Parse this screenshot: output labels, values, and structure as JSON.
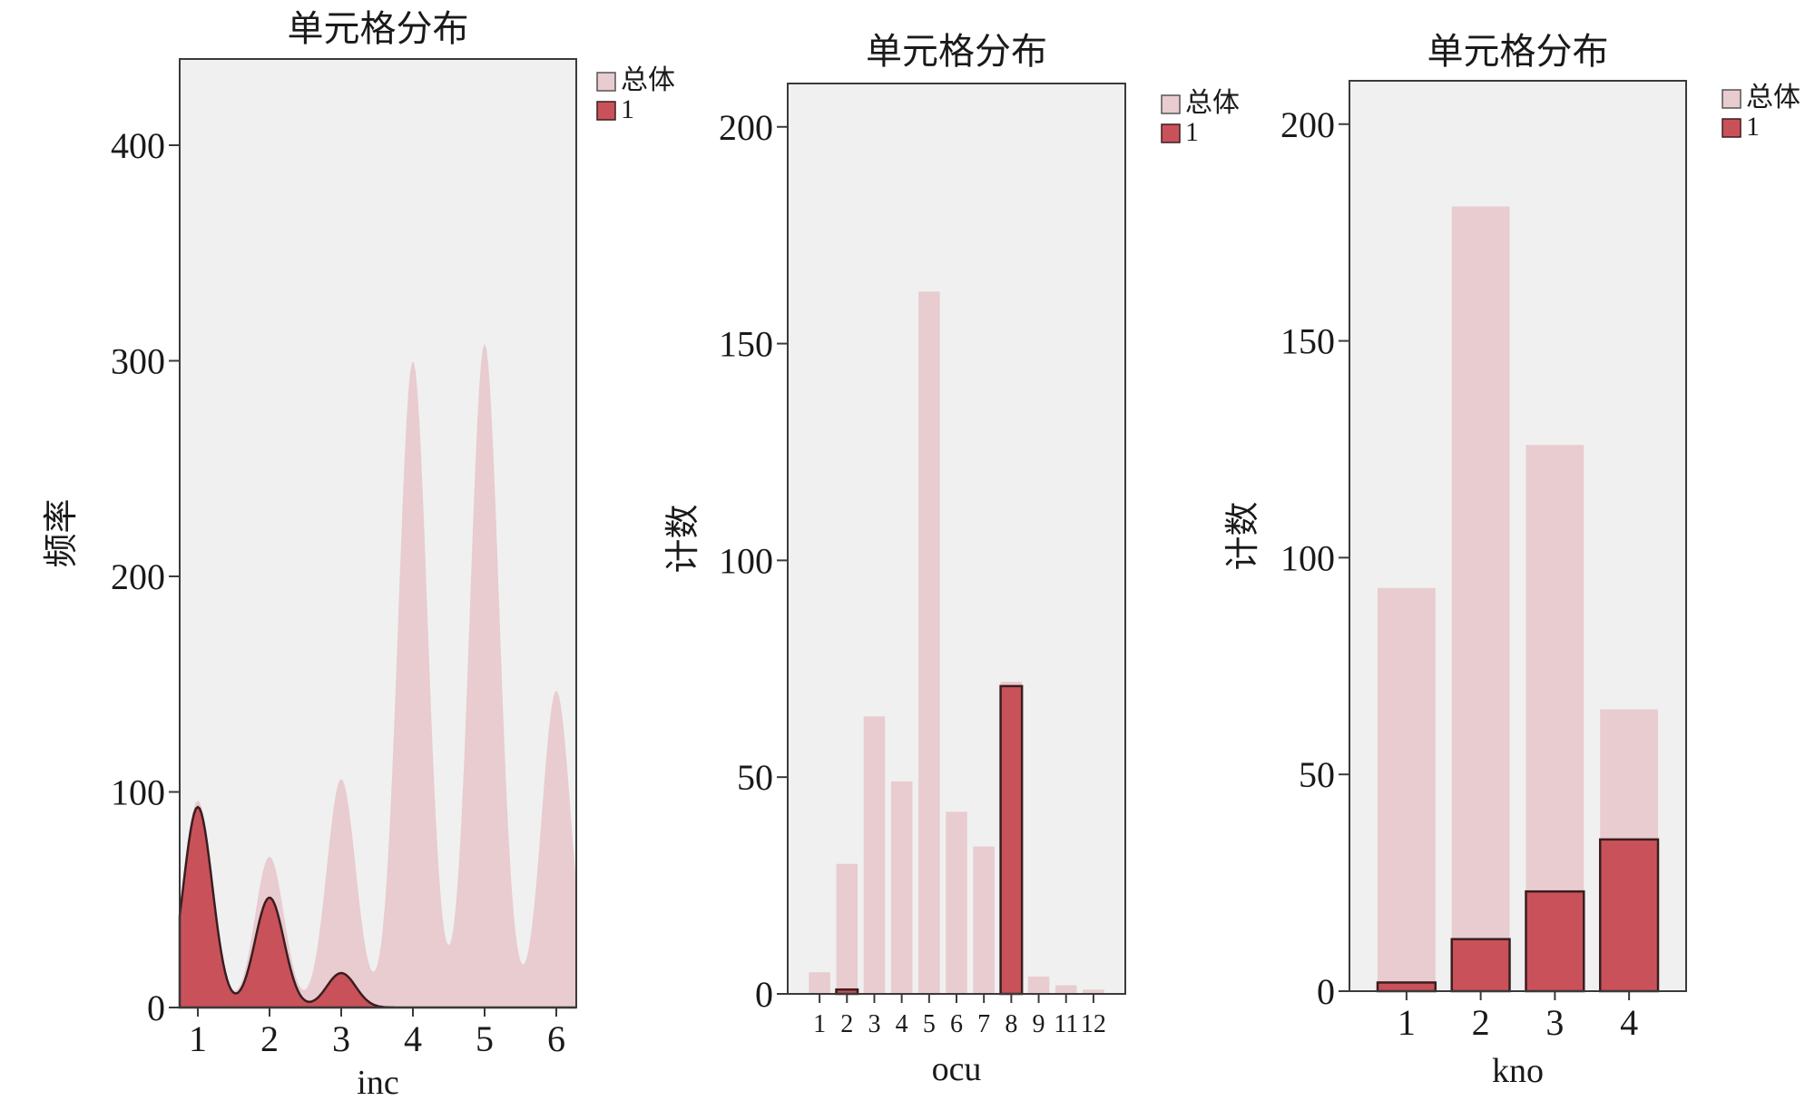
{
  "colors": {
    "total": "#e8cccf",
    "highlight": "#c9525a",
    "highlight_stroke": "#3a1e20",
    "plot_bg": "#f0f0f0"
  },
  "chart_data": [
    {
      "type": "area",
      "title": "单元格分布",
      "xlabel": "inc",
      "ylabel": "频率",
      "categories": [
        "1",
        "2",
        "3",
        "4",
        "5",
        "6"
      ],
      "ylim": [
        0,
        440
      ],
      "yticks": [
        "0",
        "100",
        "200",
        "300",
        "400"
      ],
      "legend": {
        "placement": "top-right",
        "entries": [
          "总体",
          "1"
        ]
      },
      "series": [
        {
          "name": "总体",
          "values": [
            96,
            70,
            106,
            300,
            308,
            147
          ]
        },
        {
          "name": "1",
          "values": [
            93,
            51,
            16,
            0,
            0,
            0
          ]
        }
      ]
    },
    {
      "type": "bar",
      "title": "单元格分布",
      "xlabel": "ocu",
      "ylabel": "计数",
      "categories": [
        "1",
        "2",
        "3",
        "4",
        "5",
        "6",
        "7",
        "8",
        "9",
        "11",
        "12"
      ],
      "ylim": [
        0,
        210
      ],
      "yticks": [
        "0",
        "50",
        "100",
        "150",
        "200"
      ],
      "legend": {
        "placement": "top-right",
        "entries": [
          "总体",
          "1"
        ]
      },
      "series": [
        {
          "name": "总体",
          "values": [
            5,
            30,
            64,
            49,
            162,
            42,
            34,
            72,
            4,
            2,
            1
          ]
        },
        {
          "name": "1",
          "values": [
            0,
            1,
            0,
            0,
            0,
            0,
            0,
            71,
            0,
            0,
            0
          ]
        }
      ]
    },
    {
      "type": "bar",
      "title": "单元格分布",
      "xlabel": "kno",
      "ylabel": "计数",
      "categories": [
        "1",
        "2",
        "3",
        "4"
      ],
      "ylim": [
        0,
        210
      ],
      "yticks": [
        "0",
        "50",
        "100",
        "150",
        "200"
      ],
      "legend": {
        "placement": "top-right",
        "entries": [
          "总体",
          "1"
        ]
      },
      "series": [
        {
          "name": "总体",
          "values": [
            93,
            181,
            126,
            65
          ]
        },
        {
          "name": "1",
          "values": [
            2,
            12,
            23,
            35
          ]
        }
      ]
    }
  ]
}
